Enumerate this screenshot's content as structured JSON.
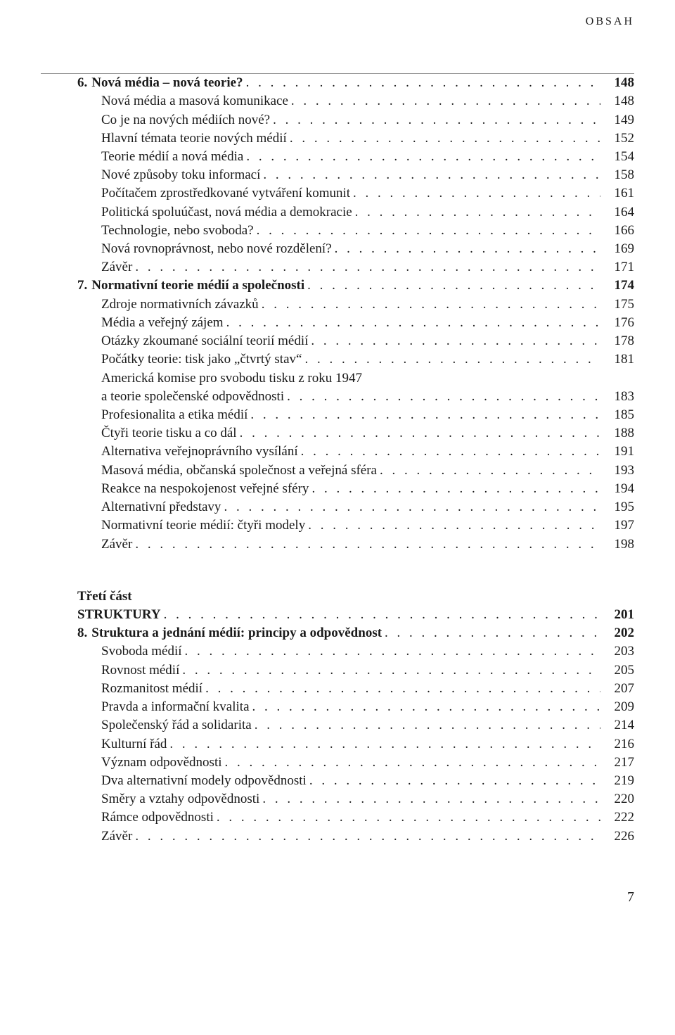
{
  "running_head": "OBSAH",
  "folio": "7",
  "part": {
    "label": "Třetí část",
    "heading_label": "STRUKTURY",
    "heading_page": "201"
  },
  "entries": [
    {
      "type": "chapter",
      "num": "6.",
      "label": "Nová média – nová teorie?",
      "page": "148"
    },
    {
      "type": "item",
      "label": "Nová média a masová komunikace",
      "page": "148"
    },
    {
      "type": "item",
      "label": "Co je na nových médiích nové?",
      "page": "149"
    },
    {
      "type": "item",
      "label": "Hlavní témata teorie nových médií",
      "page": "152"
    },
    {
      "type": "item",
      "label": "Teorie médií a nová média",
      "page": "154"
    },
    {
      "type": "item",
      "label": "Nové způsoby toku informací",
      "page": "158"
    },
    {
      "type": "item",
      "label": "Počítačem zprostředkované vytváření komunit",
      "page": "161"
    },
    {
      "type": "item",
      "label": "Politická spoluúčast, nová média a demokracie",
      "page": "164"
    },
    {
      "type": "item",
      "label": "Technologie, nebo svoboda?",
      "page": "166"
    },
    {
      "type": "item",
      "label": "Nová rovnoprávnost, nebo nové rozdělení?",
      "page": "169"
    },
    {
      "type": "item",
      "label": "Závěr",
      "page": "171"
    },
    {
      "type": "chapter",
      "num": "7.",
      "label": "Normativní teorie médií a společnosti",
      "page": "174"
    },
    {
      "type": "item",
      "label": "Zdroje normativních závazků",
      "page": "175"
    },
    {
      "type": "item",
      "label": "Média a veřejný zájem",
      "page": "176"
    },
    {
      "type": "item",
      "label": "Otázky zkoumané sociální teorií médií",
      "page": "178"
    },
    {
      "type": "item",
      "label": "Počátky teorie: tisk jako „čtvrtý stav“",
      "page": "181"
    },
    {
      "type": "item-multiline",
      "label_a": "Americká komise pro svobodu tisku z roku 1947",
      "label_b": "a teorie společenské odpovědnosti",
      "page": "183"
    },
    {
      "type": "item",
      "label": "Profesionalita a etika médií",
      "page": "185"
    },
    {
      "type": "item",
      "label": "Čtyři teorie tisku a co dál",
      "page": "188"
    },
    {
      "type": "item",
      "label": "Alternativa veřejnoprávního vysílání",
      "page": "191"
    },
    {
      "type": "item",
      "label": "Masová média, občanská společnost a veřejná sféra",
      "page": "193"
    },
    {
      "type": "item",
      "label": "Reakce na nespokojenost veřejné sféry",
      "page": "194"
    },
    {
      "type": "item",
      "label": "Alternativní představy",
      "page": "195"
    },
    {
      "type": "item",
      "label": "Normativní teorie médií: čtyři modely",
      "page": "197"
    },
    {
      "type": "item",
      "label": "Závěr",
      "page": "198"
    }
  ],
  "entries2": [
    {
      "type": "chapter",
      "num": "8.",
      "label": "Struktura a jednání médií: principy a odpovědnost",
      "page": "202"
    },
    {
      "type": "item",
      "label": "Svoboda médií",
      "page": "203"
    },
    {
      "type": "item",
      "label": "Rovnost médií",
      "page": "205"
    },
    {
      "type": "item",
      "label": "Rozmanitost médií",
      "page": "207"
    },
    {
      "type": "item",
      "label": "Pravda a informační kvalita",
      "page": "209"
    },
    {
      "type": "item",
      "label": "Společenský řád a solidarita",
      "page": "214"
    },
    {
      "type": "item",
      "label": "Kulturní řád",
      "page": "216"
    },
    {
      "type": "item",
      "label": "Význam odpovědnosti",
      "page": "217"
    },
    {
      "type": "item",
      "label": "Dva alternativní modely odpovědnosti",
      "page": "219"
    },
    {
      "type": "item",
      "label": "Směry a vztahy odpovědnosti",
      "page": "220"
    },
    {
      "type": "item",
      "label": "Rámce odpovědnosti",
      "page": "222"
    },
    {
      "type": "item",
      "label": "Závěr",
      "page": "226"
    }
  ]
}
